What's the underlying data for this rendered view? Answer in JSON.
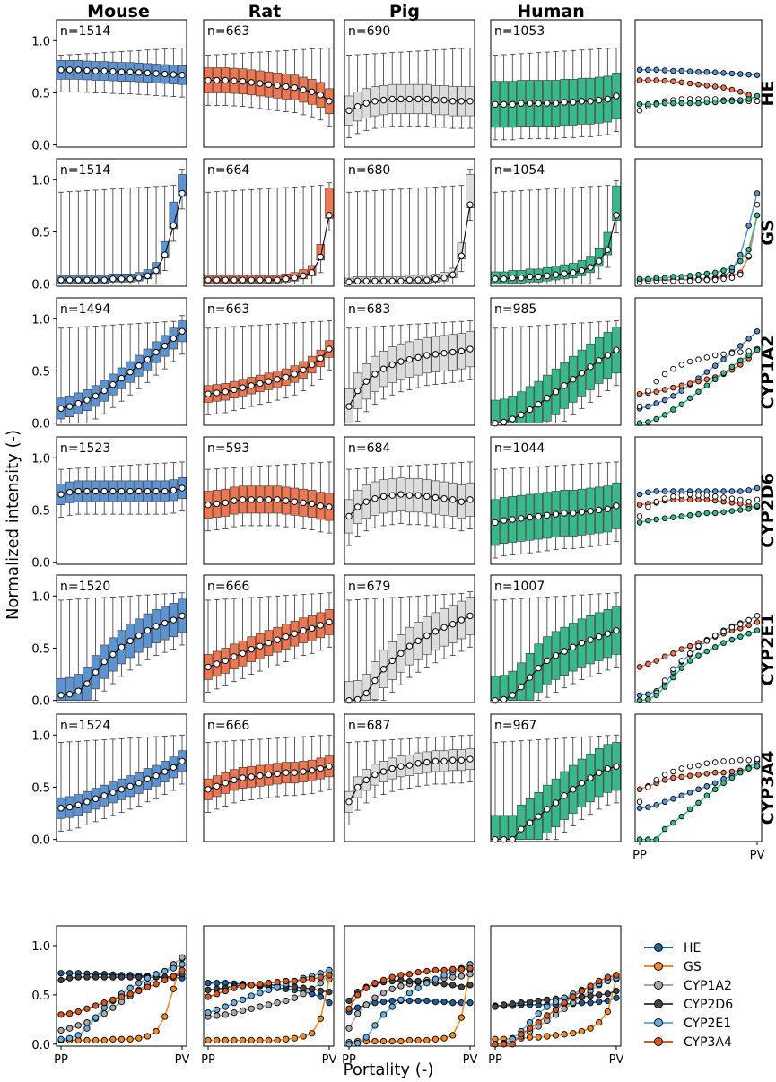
{
  "figure": {
    "ylabel": "Normalized intensity (-)",
    "xlabel": "Portality (-)"
  },
  "chart_data": {
    "type": "box",
    "species": [
      "Mouse",
      "Rat",
      "Pig",
      "Human"
    ],
    "markers": [
      "HE",
      "GS",
      "CYP1A2",
      "CYP2D6",
      "CYP2E1",
      "CYP3A4"
    ],
    "n_bins": 15,
    "x_tick_labels": [
      "PP",
      "PV"
    ],
    "y_ticks": [
      "0.0",
      "0.5",
      "1.0"
    ],
    "ylim": [
      -0.02,
      1.2
    ],
    "species_colors": {
      "Mouse": "#5b93d3",
      "Rat": "#ee7752",
      "Pig": "#dcdcdc",
      "Human": "#38b98a"
    },
    "marker_colors": {
      "HE": "#1f5f99",
      "GS": "#f08a2a",
      "CYP1A2": "#a9a9a9",
      "CYP2D6": "#444444",
      "CYP2E1": "#6aaee0",
      "CYP3A4": "#d5591e"
    },
    "n_labels": {
      "HE": [
        "n=1514",
        "n=663",
        "n=690",
        "n=1053"
      ],
      "GS": [
        "n=1514",
        "n=664",
        "n=680",
        "n=1054"
      ],
      "CYP1A2": [
        "n=1494",
        "n=663",
        "n=683",
        "n=985"
      ],
      "CYP2D6": [
        "n=1523",
        "n=593",
        "n=684",
        "n=1044"
      ],
      "CYP2E1": [
        "n=1520",
        "n=666",
        "n=679",
        "n=1007"
      ],
      "CYP3A4": [
        "n=1524",
        "n=666",
        "n=687",
        "n=967"
      ]
    },
    "medians": {
      "HE": {
        "Mouse": [
          0.72,
          0.72,
          0.72,
          0.715,
          0.71,
          0.71,
          0.705,
          0.7,
          0.7,
          0.695,
          0.69,
          0.685,
          0.68,
          0.675,
          0.67
        ],
        "Rat": [
          0.62,
          0.62,
          0.62,
          0.615,
          0.61,
          0.6,
          0.59,
          0.58,
          0.57,
          0.56,
          0.55,
          0.53,
          0.51,
          0.48,
          0.42
        ],
        "Pig": [
          0.33,
          0.37,
          0.4,
          0.42,
          0.43,
          0.44,
          0.44,
          0.44,
          0.44,
          0.44,
          0.43,
          0.43,
          0.42,
          0.42,
          0.42
        ],
        "Human": [
          0.39,
          0.39,
          0.39,
          0.4,
          0.4,
          0.4,
          0.4,
          0.4,
          0.41,
          0.41,
          0.42,
          0.42,
          0.43,
          0.44,
          0.47
        ]
      },
      "GS": {
        "Mouse": [
          0.04,
          0.04,
          0.04,
          0.04,
          0.04,
          0.04,
          0.05,
          0.05,
          0.05,
          0.06,
          0.08,
          0.13,
          0.28,
          0.56,
          0.87
        ],
        "Rat": [
          0.04,
          0.04,
          0.04,
          0.04,
          0.04,
          0.04,
          0.04,
          0.04,
          0.04,
          0.05,
          0.06,
          0.08,
          0.11,
          0.26,
          0.66
        ],
        "Pig": [
          0.02,
          0.03,
          0.03,
          0.03,
          0.03,
          0.03,
          0.03,
          0.04,
          0.04,
          0.04,
          0.05,
          0.06,
          0.09,
          0.27,
          0.76
        ],
        "Human": [
          0.05,
          0.05,
          0.06,
          0.06,
          0.07,
          0.07,
          0.08,
          0.09,
          0.1,
          0.11,
          0.13,
          0.16,
          0.22,
          0.33,
          0.66
        ]
      },
      "CYP1A2": {
        "Mouse": [
          0.14,
          0.16,
          0.19,
          0.22,
          0.26,
          0.31,
          0.37,
          0.43,
          0.49,
          0.55,
          0.61,
          0.68,
          0.74,
          0.81,
          0.88
        ],
        "Rat": [
          0.28,
          0.29,
          0.3,
          0.32,
          0.34,
          0.36,
          0.38,
          0.4,
          0.42,
          0.44,
          0.47,
          0.51,
          0.56,
          0.62,
          0.71
        ],
        "Pig": [
          0.16,
          0.31,
          0.4,
          0.47,
          0.52,
          0.56,
          0.59,
          0.61,
          0.63,
          0.65,
          0.66,
          0.67,
          0.68,
          0.69,
          0.71
        ],
        "Human": [
          0.0,
          0.01,
          0.04,
          0.08,
          0.13,
          0.18,
          0.24,
          0.3,
          0.36,
          0.42,
          0.48,
          0.54,
          0.6,
          0.65,
          0.7
        ]
      },
      "CYP2D6": {
        "Mouse": [
          0.65,
          0.67,
          0.68,
          0.68,
          0.68,
          0.68,
          0.68,
          0.68,
          0.68,
          0.68,
          0.68,
          0.68,
          0.68,
          0.69,
          0.71
        ],
        "Rat": [
          0.55,
          0.56,
          0.57,
          0.59,
          0.6,
          0.6,
          0.6,
          0.6,
          0.6,
          0.59,
          0.58,
          0.57,
          0.56,
          0.54,
          0.53
        ],
        "Pig": [
          0.44,
          0.53,
          0.58,
          0.61,
          0.63,
          0.64,
          0.65,
          0.64,
          0.64,
          0.63,
          0.62,
          0.61,
          0.6,
          0.58,
          0.6
        ],
        "Human": [
          0.38,
          0.4,
          0.41,
          0.42,
          0.43,
          0.44,
          0.45,
          0.46,
          0.47,
          0.47,
          0.48,
          0.49,
          0.5,
          0.51,
          0.54
        ]
      },
      "CYP2E1": {
        "Mouse": [
          0.05,
          0.06,
          0.09,
          0.16,
          0.27,
          0.37,
          0.44,
          0.51,
          0.57,
          0.62,
          0.67,
          0.71,
          0.74,
          0.77,
          0.81
        ],
        "Rat": [
          0.32,
          0.35,
          0.38,
          0.42,
          0.45,
          0.49,
          0.52,
          0.55,
          0.58,
          0.61,
          0.64,
          0.67,
          0.69,
          0.72,
          0.75
        ],
        "Pig": [
          0.0,
          0.01,
          0.07,
          0.19,
          0.3,
          0.38,
          0.45,
          0.52,
          0.57,
          0.62,
          0.66,
          0.7,
          0.73,
          0.77,
          0.81
        ],
        "Human": [
          0.0,
          0.01,
          0.05,
          0.13,
          0.22,
          0.31,
          0.38,
          0.43,
          0.47,
          0.51,
          0.55,
          0.58,
          0.61,
          0.64,
          0.67
        ]
      },
      "CYP3A4": {
        "Mouse": [
          0.3,
          0.31,
          0.33,
          0.36,
          0.39,
          0.42,
          0.45,
          0.48,
          0.51,
          0.54,
          0.58,
          0.61,
          0.65,
          0.69,
          0.75
        ],
        "Rat": [
          0.48,
          0.51,
          0.54,
          0.57,
          0.59,
          0.6,
          0.61,
          0.62,
          0.63,
          0.64,
          0.64,
          0.65,
          0.66,
          0.68,
          0.7
        ],
        "Pig": [
          0.36,
          0.5,
          0.57,
          0.62,
          0.65,
          0.68,
          0.7,
          0.71,
          0.73,
          0.74,
          0.75,
          0.75,
          0.76,
          0.76,
          0.77
        ],
        "Human": [
          0.0,
          0.0,
          0.0,
          0.1,
          0.16,
          0.22,
          0.29,
          0.35,
          0.42,
          0.48,
          0.54,
          0.59,
          0.64,
          0.68,
          0.7
        ]
      }
    },
    "box_halfwidth": {
      "HE": {
        "Mouse": 0.09,
        "Rat": 0.12,
        "Pig": 0.14,
        "Human": 0.22
      },
      "GS": {
        "Mouse": 0.03,
        "Rat": 0.03,
        "Pig": 0.03,
        "Human": 0.05
      },
      "CYP1A2": {
        "Mouse": 0.1,
        "Rat": 0.08,
        "Pig": 0.17,
        "Human": 0.22
      },
      "CYP2D6": {
        "Mouse": 0.1,
        "Rat": 0.13,
        "Pig": 0.16,
        "Human": 0.22
      },
      "CYP2E1": {
        "Mouse": 0.16,
        "Rat": 0.12,
        "Pig": 0.18,
        "Human": 0.23
      },
      "CYP3A4": {
        "Mouse": 0.1,
        "Rat": 0.1,
        "Pig": 0.1,
        "Human": 0.23
      }
    },
    "whisker_top": {
      "HE": 0.93,
      "GS": 0.95,
      "CYP1A2": 0.98,
      "CYP2D6": 0.96,
      "CYP2E1": 1.03,
      "CYP3A4": 1.0
    }
  }
}
